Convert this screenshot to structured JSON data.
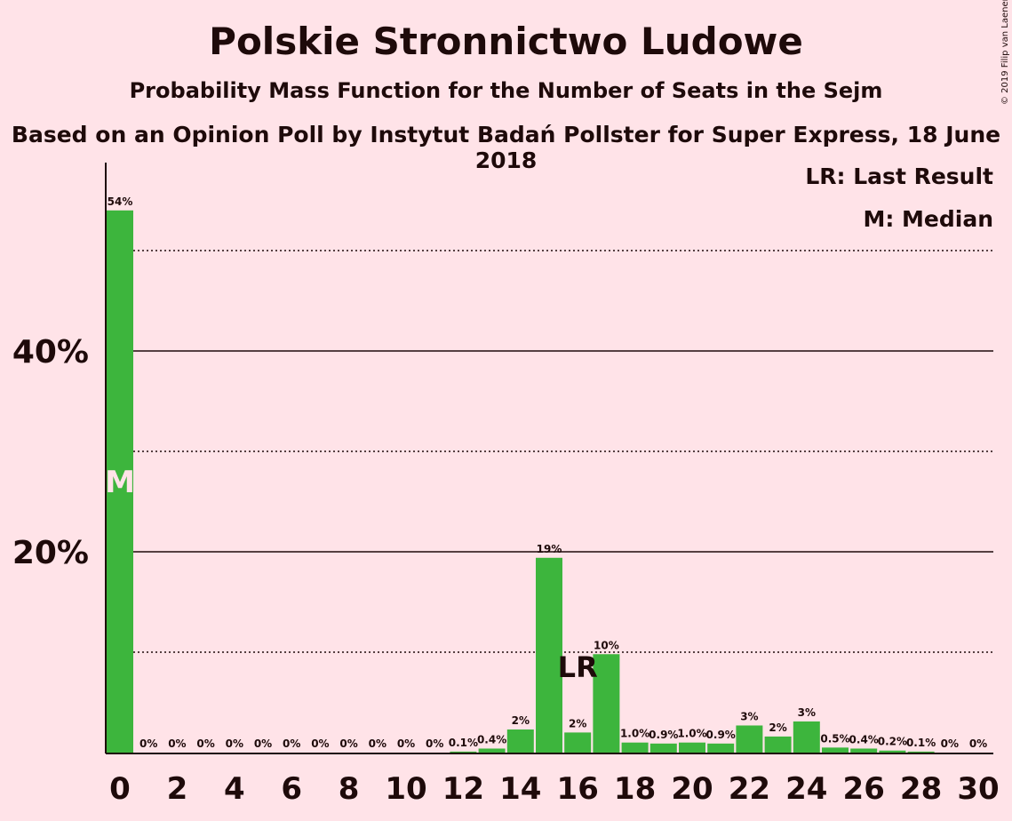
{
  "title": "Polskie Stronnictwo Ludowe",
  "subtitle": "Probability Mass Function for the Number of Seats in the Sejm",
  "source": "Based on an Opinion Poll by Instytut Badań Pollster for Super Express, 18 June 2018",
  "copyright": "© 2019 Filip van Laenen",
  "legend": {
    "last_result": "LR: Last Result",
    "median": "M: Median"
  },
  "colors": {
    "bar": "#3DB53D",
    "background": "#FFE3E8",
    "text": "#1e0a0a",
    "median_marker": "#FFE3E8"
  },
  "chart_data": {
    "type": "bar",
    "x": [
      0,
      1,
      2,
      3,
      4,
      5,
      6,
      7,
      8,
      9,
      10,
      11,
      12,
      13,
      14,
      15,
      16,
      17,
      18,
      19,
      20,
      21,
      22,
      23,
      24,
      25,
      26,
      27,
      28,
      29,
      30
    ],
    "values": [
      54,
      0,
      0,
      0,
      0,
      0,
      0,
      0,
      0,
      0,
      0,
      0,
      0.1,
      0.4,
      2.3,
      19.4,
      2.0,
      9.8,
      1.0,
      0.9,
      1.0,
      0.9,
      2.7,
      1.6,
      3.1,
      0.5,
      0.4,
      0.2,
      0.1,
      0,
      0
    ],
    "value_labels": [
      "54%",
      "0%",
      "0%",
      "0%",
      "0%",
      "0%",
      "0%",
      "0%",
      "0%",
      "0%",
      "0%",
      "0%",
      "0.1%",
      "0.4%",
      "2%",
      "19%",
      "2%",
      "10%",
      "1.0%",
      "0.9%",
      "1.0%",
      "0.9%",
      "3%",
      "2%",
      "3%",
      "0.5%",
      "0.4%",
      "0.2%",
      "0.1%",
      "0%",
      "0%"
    ],
    "x_tick_labels": [
      "0",
      "2",
      "4",
      "6",
      "8",
      "10",
      "12",
      "14",
      "16",
      "18",
      "20",
      "22",
      "24",
      "26",
      "28",
      "30"
    ],
    "x_tick_values": [
      0,
      2,
      4,
      6,
      8,
      10,
      12,
      14,
      16,
      18,
      20,
      22,
      24,
      26,
      28,
      30
    ],
    "y_tick_labels": [
      "20%",
      "40%"
    ],
    "y_tick_values": [
      20,
      40
    ],
    "y_dotted_gridlines": [
      10,
      30,
      50
    ],
    "ylim": [
      0,
      58
    ],
    "median": {
      "x": 0,
      "label": "M"
    },
    "last_result": {
      "x": 16,
      "label": "LR"
    },
    "xlabel": "",
    "ylabel": ""
  }
}
